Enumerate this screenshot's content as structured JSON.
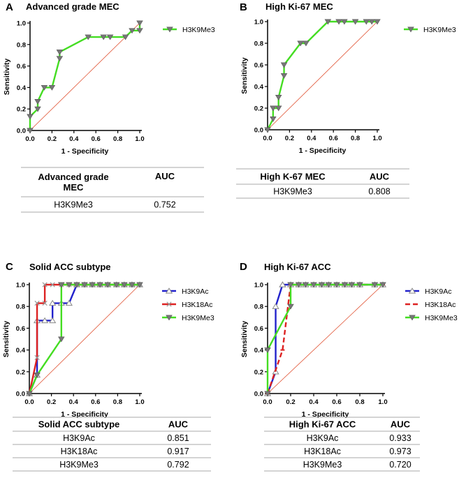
{
  "panels": [
    {
      "letter": "A",
      "chart_data": {
        "type": "line",
        "title": "Advanced grade MEC",
        "xlabel": "1 - Specificity",
        "ylabel": "Sensitivity",
        "xlim": [
          0,
          1
        ],
        "ylim": [
          0,
          1
        ],
        "xticks": [
          "0.0",
          "0.2",
          "0.4",
          "0.6",
          "0.8",
          "1.0"
        ],
        "yticks": [
          "0.0",
          "0.2",
          "0.4",
          "0.6",
          "0.8",
          "1.0"
        ],
        "reference_line": true,
        "series": [
          {
            "name": "H3K9Me3",
            "color": "#44dd22",
            "marker": "triangle-down",
            "x": [
              0,
              0,
              0.07,
              0.07,
              0.13,
              0.2,
              0.27,
              0.27,
              0.53,
              0.67,
              0.73,
              0.87,
              0.93,
              1.0,
              1.0
            ],
            "y": [
              0,
              0.13,
              0.2,
              0.27,
              0.4,
              0.4,
              0.67,
              0.73,
              0.87,
              0.87,
              0.87,
              0.87,
              0.93,
              0.93,
              1.0
            ]
          }
        ]
      },
      "table": {
        "header": [
          "Advanced grade\nMEC",
          "AUC"
        ],
        "rows": [
          [
            "H3K9Me3",
            "0.752"
          ]
        ]
      }
    },
    {
      "letter": "B",
      "chart_data": {
        "type": "line",
        "title": "High Ki-67 MEC",
        "xlabel": "1 - Specificity",
        "ylabel": "Sensitivity",
        "xlim": [
          0,
          1
        ],
        "ylim": [
          0,
          1
        ],
        "xticks": [
          "0.0",
          "0.2",
          "0.4",
          "0.6",
          "0.8",
          "1.0"
        ],
        "yticks": [
          "0.0",
          "0.2",
          "0.4",
          "0.6",
          "0.8",
          "1.0"
        ],
        "reference_line": true,
        "series": [
          {
            "name": "H3K9Me3",
            "color": "#44dd22",
            "marker": "triangle-down",
            "x": [
              0,
              0.05,
              0.05,
              0.1,
              0.1,
              0.15,
              0.15,
              0.3,
              0.35,
              0.55,
              0.65,
              0.7,
              0.8,
              0.9,
              0.95,
              1.0
            ],
            "y": [
              0,
              0.1,
              0.2,
              0.2,
              0.3,
              0.5,
              0.6,
              0.8,
              0.8,
              1.0,
              1.0,
              1.0,
              1.0,
              1.0,
              1.0,
              1.0
            ]
          }
        ]
      },
      "table": {
        "header": [
          "High K-67 MEC",
          "AUC"
        ],
        "rows": [
          [
            "H3K9Me3",
            "0.808"
          ]
        ]
      }
    },
    {
      "letter": "C",
      "chart_data": {
        "type": "line",
        "title": "Solid ACC subtype",
        "xlabel": "1 - Specificity",
        "ylabel": "Sensitivity",
        "xlim": [
          0,
          1
        ],
        "ylim": [
          0,
          1
        ],
        "xticks": [
          "0.0",
          "0.2",
          "0.4",
          "0.6",
          "0.8",
          "1.0"
        ],
        "yticks": [
          "0.0",
          "0.2",
          "0.4",
          "0.6",
          "0.8",
          "1.0"
        ],
        "reference_line": true,
        "series": [
          {
            "name": "H3K9Ac",
            "color": "#2222cc",
            "marker": "triangle-up",
            "x": [
              0,
              0.07,
              0.07,
              0.14,
              0.21,
              0.21,
              0.29,
              0.36,
              0.43,
              0.5,
              0.57,
              0.64,
              0.71,
              0.79,
              0.86,
              0.93,
              1.0
            ],
            "y": [
              0,
              0.17,
              0.67,
              0.67,
              0.67,
              0.83,
              0.83,
              0.83,
              1.0,
              1.0,
              1.0,
              1.0,
              1.0,
              1.0,
              1.0,
              1.0,
              1.0
            ]
          },
          {
            "name": "H3K18Ac",
            "color": "#dd2222",
            "marker": "x",
            "x": [
              0,
              0.07,
              0.07,
              0.14,
              0.14,
              0.21,
              0.29,
              0.36,
              0.43,
              0.5,
              0.57,
              0.64,
              0.71,
              0.79,
              0.86,
              0.93,
              1.0
            ],
            "y": [
              0,
              0.33,
              0.83,
              0.83,
              1.0,
              1.0,
              1.0,
              1.0,
              1.0,
              1.0,
              1.0,
              1.0,
              1.0,
              1.0,
              1.0,
              1.0,
              1.0
            ]
          },
          {
            "name": "H3K9Me3",
            "color": "#44dd22",
            "marker": "triangle-down",
            "x": [
              0,
              0.07,
              0.29,
              0.29,
              0.29,
              0.36,
              0.43,
              0.5,
              0.57,
              0.64,
              0.71,
              0.79,
              0.86,
              0.93,
              1.0
            ],
            "y": [
              0,
              0.17,
              0.5,
              1.0,
              1.0,
              1.0,
              1.0,
              1.0,
              1.0,
              1.0,
              1.0,
              1.0,
              1.0,
              1.0,
              1.0
            ]
          }
        ]
      },
      "table": {
        "header": [
          "Solid ACC subtype",
          "AUC"
        ],
        "rows": [
          [
            "H3K9Ac",
            "0.851"
          ],
          [
            "H3K18Ac",
            "0.917"
          ],
          [
            "H3K9Me3",
            "0.792"
          ]
        ]
      }
    },
    {
      "letter": "D",
      "chart_data": {
        "type": "line",
        "title": "High Ki-67 ACC",
        "xlabel": "1 - Specificity",
        "ylabel": "Sensitivity",
        "xlim": [
          0,
          1
        ],
        "ylim": [
          0,
          1
        ],
        "xticks": [
          "0.0",
          "0.2",
          "0.4",
          "0.6",
          "0.8",
          "1.0"
        ],
        "yticks": [
          "0.0",
          "0.2",
          "0.4",
          "0.6",
          "0.8",
          "1.0"
        ],
        "reference_line": true,
        "series": [
          {
            "name": "H3K9Ac",
            "color": "#2222cc",
            "marker": "triangle-up",
            "x": [
              0,
              0.07,
              0.07,
              0.13,
              0.13,
              0.2,
              0.27,
              0.33,
              0.4,
              0.47,
              0.53,
              0.6,
              0.67,
              0.73,
              0.8,
              0.93,
              1.0
            ],
            "y": [
              0,
              0.2,
              0.8,
              1.0,
              1.0,
              1.0,
              1.0,
              1.0,
              1.0,
              1.0,
              1.0,
              1.0,
              1.0,
              1.0,
              1.0,
              1.0,
              1.0
            ]
          },
          {
            "name": "H3K18Ac",
            "color": "#dd2222",
            "marker": "dash",
            "x": [
              0,
              0.13,
              0.2,
              0.27,
              0.33,
              0.4,
              0.47,
              0.53,
              0.6,
              0.67,
              0.73,
              0.8,
              0.93,
              1.0
            ],
            "y": [
              0,
              0.4,
              1.0,
              1.0,
              1.0,
              1.0,
              1.0,
              1.0,
              1.0,
              1.0,
              1.0,
              1.0,
              1.0,
              1.0
            ]
          },
          {
            "name": "H3K9Me3",
            "color": "#44dd22",
            "marker": "triangle-down",
            "x": [
              0,
              0,
              0.2,
              0.2,
              0.27,
              0.33,
              0.4,
              0.47,
              0.53,
              0.6,
              0.67,
              0.73,
              0.8,
              0.93,
              1.0
            ],
            "y": [
              0,
              0.4,
              0.8,
              1.0,
              1.0,
              1.0,
              1.0,
              1.0,
              1.0,
              1.0,
              1.0,
              1.0,
              1.0,
              1.0,
              1.0
            ]
          }
        ]
      },
      "table": {
        "header": [
          "High Ki-67 ACC",
          "AUC"
        ],
        "rows": [
          [
            "H3K9Ac",
            "0.933"
          ],
          [
            "H3K18Ac",
            "0.973"
          ],
          [
            "H3K9Me3",
            "0.720"
          ]
        ]
      }
    }
  ]
}
